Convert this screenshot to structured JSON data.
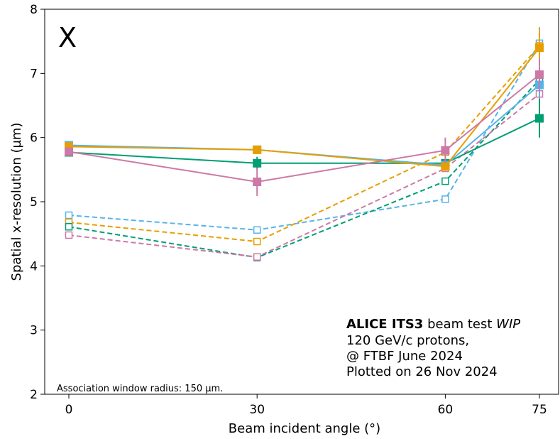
{
  "chart_data": {
    "type": "line",
    "xlabel": "Beam incident angle (°)",
    "ylabel": "Spatial x-resolution (µm)",
    "x": [
      0,
      30,
      60,
      75
    ],
    "x_ticks": [
      "0",
      "30",
      "60",
      "75"
    ],
    "y_ticks": [
      "2",
      "3",
      "4",
      "5",
      "6",
      "7",
      "8"
    ],
    "ylim": [
      2,
      8
    ],
    "grid": false,
    "marker_label": "X",
    "marker_label_color": "#ff0000",
    "annotation": {
      "bold": "ALICE ITS3",
      "plain": " beam test ",
      "italic": "WIP",
      "line2": "120 GeV/c protons,",
      "line3": "@ FTBF June 2024",
      "line4": "Plotted on 26 Nov 2024"
    },
    "footnote": "Association window radius: 150 µm.",
    "series": [
      {
        "color": "#009e73",
        "style": "solid",
        "marker": "filled",
        "values": [
          5.77,
          5.6,
          5.6,
          6.3
        ],
        "err": [
          0.04,
          0.1,
          0.06,
          0.3
        ]
      },
      {
        "color": "#56b4e9",
        "style": "solid",
        "marker": "filled",
        "values": [
          5.88,
          5.81,
          5.57,
          6.82
        ],
        "err": [
          0.04,
          0.05,
          0.05,
          0.2
        ]
      },
      {
        "color": "#e69f00",
        "style": "solid",
        "marker": "filled",
        "values": [
          5.86,
          5.81,
          5.55,
          7.4
        ],
        "err": [
          0.04,
          0.06,
          0.06,
          0.3
        ]
      },
      {
        "color": "#cc79a7",
        "style": "solid",
        "marker": "filled",
        "values": [
          5.78,
          5.31,
          5.8,
          6.98
        ],
        "err": [
          0.04,
          0.22,
          0.2,
          0.25
        ]
      },
      {
        "color": "#56b4e9",
        "style": "dashed",
        "marker": "open",
        "values": [
          4.79,
          4.56,
          5.04,
          7.47
        ],
        "err": [
          0.03,
          0.04,
          0.04,
          0.25
        ]
      },
      {
        "color": "#e69f00",
        "style": "dashed",
        "marker": "open",
        "values": [
          4.68,
          4.38,
          5.77,
          7.43
        ],
        "err": [
          0.03,
          0.04,
          0.05,
          0.25
        ]
      },
      {
        "color": "#009e73",
        "style": "dashed",
        "marker": "open",
        "values": [
          4.61,
          4.13,
          5.32,
          6.9
        ],
        "err": [
          0.03,
          0.05,
          0.05,
          0.25
        ]
      },
      {
        "color": "#cc79a7",
        "style": "dashed",
        "marker": "open",
        "values": [
          4.48,
          4.14,
          5.52,
          6.68
        ],
        "err": [
          0.03,
          0.05,
          0.05,
          0.25
        ]
      }
    ]
  }
}
